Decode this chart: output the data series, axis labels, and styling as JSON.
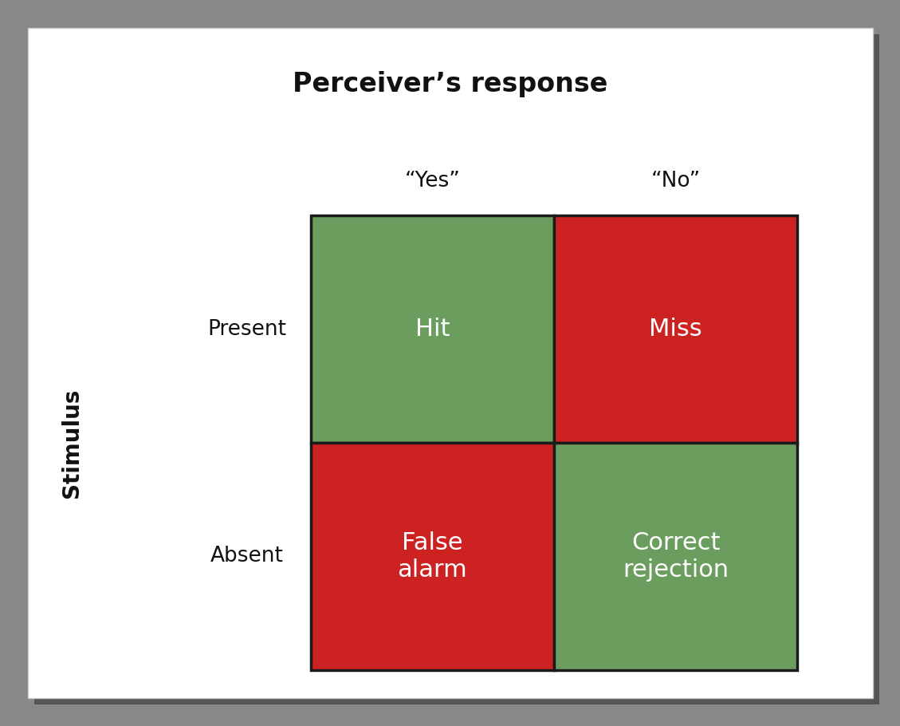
{
  "title": "Perceiver’s response",
  "title_fontsize": 24,
  "title_fontweight": "bold",
  "ylabel": "Stimulus",
  "ylabel_fontsize": 20,
  "ylabel_fontweight": "bold",
  "col_labels": [
    "“Yes”",
    "“No”"
  ],
  "row_labels": [
    "Present",
    "Absent"
  ],
  "cell_texts": [
    [
      "Hit",
      "Miss"
    ],
    [
      "False\nalarm",
      "Correct\nrejection"
    ]
  ],
  "cell_colors": [
    [
      "#6b9e5e",
      "#cc2222"
    ],
    [
      "#cc2222",
      "#6b9e5e"
    ]
  ],
  "text_color": "#ffffff",
  "cell_text_fontsize": 22,
  "row_label_fontsize": 19,
  "col_label_fontsize": 19,
  "border_color": "#1a1a1a",
  "border_linewidth": 2.5,
  "card_color": "#ffffff",
  "figure_bg": "#888888",
  "shadow_color": "#555555"
}
